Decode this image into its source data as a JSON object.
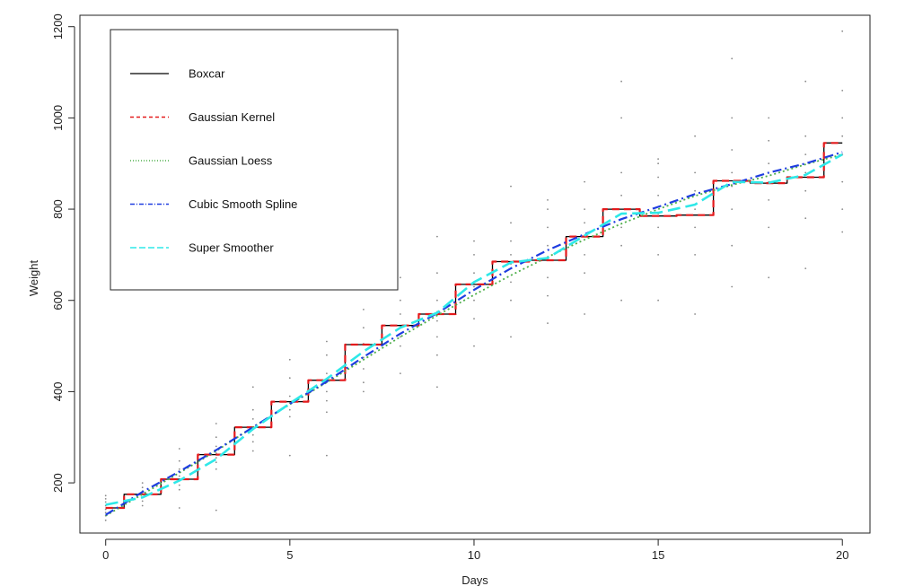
{
  "chart_data": {
    "type": "line",
    "title": "",
    "xlabel": "Days",
    "ylabel": "Weight",
    "xlim": [
      -0.7,
      20.75
    ],
    "ylim": [
      90,
      1225
    ],
    "x_ticks": [
      0,
      5,
      10,
      15,
      20
    ],
    "y_ticks": [
      200,
      400,
      600,
      800,
      1000,
      1200
    ],
    "grid": false,
    "legend_position": "top-left",
    "scatter_points": [
      [
        0,
        118
      ],
      [
        0,
        128
      ],
      [
        0,
        135
      ],
      [
        0,
        142
      ],
      [
        0,
        150
      ],
      [
        0,
        158
      ],
      [
        0,
        165
      ],
      [
        0,
        172
      ],
      [
        1,
        150
      ],
      [
        1,
        160
      ],
      [
        1,
        168
      ],
      [
        1,
        175
      ],
      [
        1,
        182
      ],
      [
        1,
        190
      ],
      [
        1,
        200
      ],
      [
        2,
        145
      ],
      [
        2,
        185
      ],
      [
        2,
        195
      ],
      [
        2,
        205
      ],
      [
        2,
        215
      ],
      [
        2,
        230
      ],
      [
        2,
        248
      ],
      [
        2,
        275
      ],
      [
        3,
        140
      ],
      [
        3,
        230
      ],
      [
        3,
        245
      ],
      [
        3,
        255
      ],
      [
        3,
        265
      ],
      [
        3,
        280
      ],
      [
        3,
        300
      ],
      [
        3,
        330
      ],
      [
        4,
        270
      ],
      [
        4,
        290
      ],
      [
        4,
        305
      ],
      [
        4,
        320
      ],
      [
        4,
        340
      ],
      [
        4,
        360
      ],
      [
        4,
        410
      ],
      [
        5,
        260
      ],
      [
        5,
        345
      ],
      [
        5,
        360
      ],
      [
        5,
        375
      ],
      [
        5,
        390
      ],
      [
        5,
        430
      ],
      [
        5,
        470
      ],
      [
        6,
        260
      ],
      [
        6,
        355
      ],
      [
        6,
        380
      ],
      [
        6,
        400
      ],
      [
        6,
        420
      ],
      [
        6,
        440
      ],
      [
        6,
        480
      ],
      [
        6,
        510
      ],
      [
        7,
        400
      ],
      [
        7,
        420
      ],
      [
        7,
        450
      ],
      [
        7,
        475
      ],
      [
        7,
        505
      ],
      [
        7,
        540
      ],
      [
        7,
        580
      ],
      [
        8,
        440
      ],
      [
        8,
        500
      ],
      [
        8,
        520
      ],
      [
        8,
        545
      ],
      [
        8,
        570
      ],
      [
        8,
        600
      ],
      [
        8,
        650
      ],
      [
        9,
        410
      ],
      [
        9,
        480
      ],
      [
        9,
        520
      ],
      [
        9,
        555
      ],
      [
        9,
        575
      ],
      [
        9,
        600
      ],
      [
        9,
        660
      ],
      [
        9,
        740
      ],
      [
        10,
        500
      ],
      [
        10,
        560
      ],
      [
        10,
        600
      ],
      [
        10,
        630
      ],
      [
        10,
        660
      ],
      [
        10,
        700
      ],
      [
        10,
        730
      ],
      [
        11,
        520
      ],
      [
        11,
        600
      ],
      [
        11,
        640
      ],
      [
        11,
        680
      ],
      [
        11,
        700
      ],
      [
        11,
        730
      ],
      [
        11,
        770
      ],
      [
        11,
        850
      ],
      [
        12,
        550
      ],
      [
        12,
        610
      ],
      [
        12,
        650
      ],
      [
        12,
        690
      ],
      [
        12,
        720
      ],
      [
        12,
        760
      ],
      [
        12,
        800
      ],
      [
        12,
        820
      ],
      [
        13,
        570
      ],
      [
        13,
        660
      ],
      [
        13,
        700
      ],
      [
        13,
        740
      ],
      [
        13,
        770
      ],
      [
        13,
        800
      ],
      [
        13,
        860
      ],
      [
        14,
        600
      ],
      [
        14,
        720
      ],
      [
        14,
        760
      ],
      [
        14,
        790
      ],
      [
        14,
        830
      ],
      [
        14,
        880
      ],
      [
        14,
        1000
      ],
      [
        14,
        1080
      ],
      [
        15,
        600
      ],
      [
        15,
        700
      ],
      [
        15,
        760
      ],
      [
        15,
        790
      ],
      [
        15,
        830
      ],
      [
        15,
        870
      ],
      [
        15,
        900
      ],
      [
        15,
        910
      ],
      [
        16,
        570
      ],
      [
        16,
        700
      ],
      [
        16,
        760
      ],
      [
        16,
        800
      ],
      [
        16,
        840
      ],
      [
        16,
        880
      ],
      [
        16,
        960
      ],
      [
        17,
        630
      ],
      [
        17,
        720
      ],
      [
        17,
        800
      ],
      [
        17,
        850
      ],
      [
        17,
        880
      ],
      [
        17,
        930
      ],
      [
        17,
        1000
      ],
      [
        17,
        1130
      ],
      [
        18,
        650
      ],
      [
        18,
        760
      ],
      [
        18,
        820
      ],
      [
        18,
        860
      ],
      [
        18,
        900
      ],
      [
        18,
        950
      ],
      [
        18,
        1000
      ],
      [
        19,
        670
      ],
      [
        19,
        780
      ],
      [
        19,
        840
      ],
      [
        19,
        880
      ],
      [
        19,
        920
      ],
      [
        19,
        960
      ],
      [
        19,
        1080
      ],
      [
        20,
        750
      ],
      [
        20,
        800
      ],
      [
        20,
        860
      ],
      [
        20,
        920
      ],
      [
        20,
        960
      ],
      [
        20,
        1000
      ],
      [
        20,
        1060
      ],
      [
        20,
        1190
      ]
    ],
    "series": [
      {
        "name": "Boxcar",
        "color": "#000000",
        "dash": "",
        "width": 1.3,
        "step": true,
        "x": [
          0,
          1,
          2,
          3,
          4,
          5,
          6,
          7,
          8,
          9,
          10,
          11,
          12,
          13,
          14,
          15,
          16,
          17,
          18,
          19,
          20
        ],
        "y": [
          145,
          175,
          208,
          262,
          322,
          378,
          425,
          503,
          545,
          570,
          635,
          685,
          688,
          740,
          800,
          785,
          787,
          862,
          857,
          870,
          945
        ]
      },
      {
        "name": "Gaussian Kernel",
        "color": "#e41a1c",
        "dash": "8,5",
        "width": 2.2,
        "step": true,
        "x": [
          0,
          1,
          2,
          3,
          4,
          5,
          6,
          7,
          8,
          9,
          10,
          11,
          12,
          13,
          14,
          15,
          16,
          17,
          18,
          19,
          20
        ],
        "y": [
          145,
          175,
          208,
          262,
          322,
          378,
          425,
          503,
          545,
          570,
          635,
          685,
          688,
          740,
          800,
          785,
          787,
          862,
          857,
          870,
          945
        ]
      },
      {
        "name": "Gaussian Loess",
        "color": "#4daf4a",
        "dash": "2,3",
        "width": 1.8,
        "step": false,
        "x": [
          0,
          1,
          2,
          3,
          4,
          5,
          6,
          7,
          8,
          9,
          10,
          11,
          12,
          13,
          14,
          15,
          16,
          17,
          18,
          19,
          20
        ],
        "y": [
          128,
          175,
          222,
          270,
          322,
          372,
          420,
          470,
          520,
          567,
          612,
          655,
          695,
          733,
          768,
          800,
          829,
          853,
          873,
          898,
          920
        ]
      },
      {
        "name": "Cubic Smooth Spline",
        "color": "#1f3de0",
        "dash": "10,4,2,4",
        "width": 2.2,
        "step": false,
        "x": [
          0,
          1,
          2,
          3,
          4,
          5,
          6,
          7,
          8,
          9,
          10,
          11,
          12,
          13,
          14,
          15,
          16,
          17,
          18,
          19,
          20
        ],
        "y": [
          130,
          180,
          225,
          272,
          322,
          373,
          422,
          476,
          527,
          572,
          623,
          670,
          710,
          745,
          778,
          805,
          833,
          855,
          880,
          900,
          925
        ]
      },
      {
        "name": "Super Smoother",
        "color": "#2ee8e8",
        "dash": "14,6",
        "width": 2.6,
        "step": false,
        "x": [
          0,
          1,
          2,
          3,
          4,
          5,
          6,
          7,
          8,
          9,
          10,
          11,
          12,
          13,
          14,
          15,
          16,
          17,
          18,
          19,
          20
        ],
        "y": [
          152,
          168,
          205,
          252,
          318,
          374,
          428,
          488,
          540,
          573,
          640,
          683,
          693,
          742,
          790,
          792,
          810,
          860,
          858,
          875,
          920
        ]
      }
    ]
  }
}
